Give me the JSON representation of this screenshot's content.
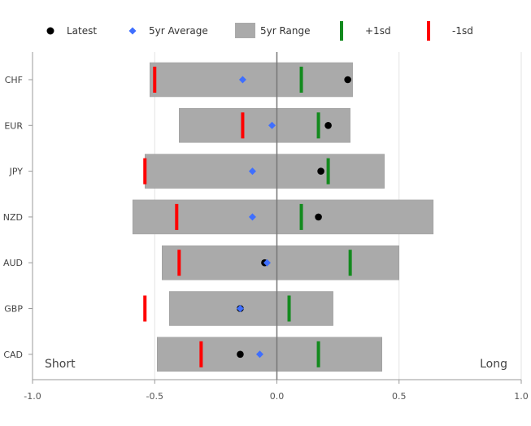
{
  "chart_data": {
    "type": "range-dot",
    "orientation": "horizontal",
    "categories": [
      "CHF",
      "EUR",
      "JPY",
      "NZD",
      "AUD",
      "GBP",
      "CAD"
    ],
    "xlim": [
      -1.0,
      1.0
    ],
    "x_ticks": [
      -1.0,
      -0.5,
      0.0,
      0.5,
      1.0
    ],
    "x_tick_labels": [
      "-1.0",
      "-0.5",
      "0.0",
      "0.5",
      "1.0"
    ],
    "grid": true,
    "legend_position": "top",
    "corner_labels": {
      "left": "Short",
      "right": "Long"
    },
    "legend": [
      {
        "key": "latest",
        "label": "Latest",
        "marker": "circle",
        "color": "#000000"
      },
      {
        "key": "avg",
        "label": "5yr Average",
        "marker": "diamond",
        "color": "#3f6fff"
      },
      {
        "key": "range",
        "label": "5yr Range",
        "marker": "rect",
        "color": "#aaaaaa"
      },
      {
        "key": "plus_sd",
        "label": "+1sd",
        "marker": "vbar",
        "color": "#138a1e"
      },
      {
        "key": "minus_sd",
        "label": "-1sd",
        "marker": "vbar",
        "color": "#ff0000"
      }
    ],
    "series": {
      "range_min": [
        -0.52,
        -0.4,
        -0.54,
        -0.59,
        -0.47,
        -0.44,
        -0.49
      ],
      "range_max": [
        0.31,
        0.3,
        0.44,
        0.64,
        0.5,
        0.23,
        0.43
      ],
      "latest": [
        0.29,
        0.21,
        0.18,
        0.17,
        -0.05,
        -0.15,
        -0.15
      ],
      "avg_5yr": [
        -0.14,
        -0.02,
        -0.1,
        -0.1,
        -0.04,
        -0.15,
        -0.07
      ],
      "plus_1sd": [
        0.1,
        0.17,
        0.21,
        0.1,
        0.3,
        0.05,
        0.17
      ],
      "minus_1sd": [
        -0.5,
        -0.14,
        -0.54,
        -0.41,
        -0.4,
        -0.54,
        -0.31
      ]
    }
  }
}
